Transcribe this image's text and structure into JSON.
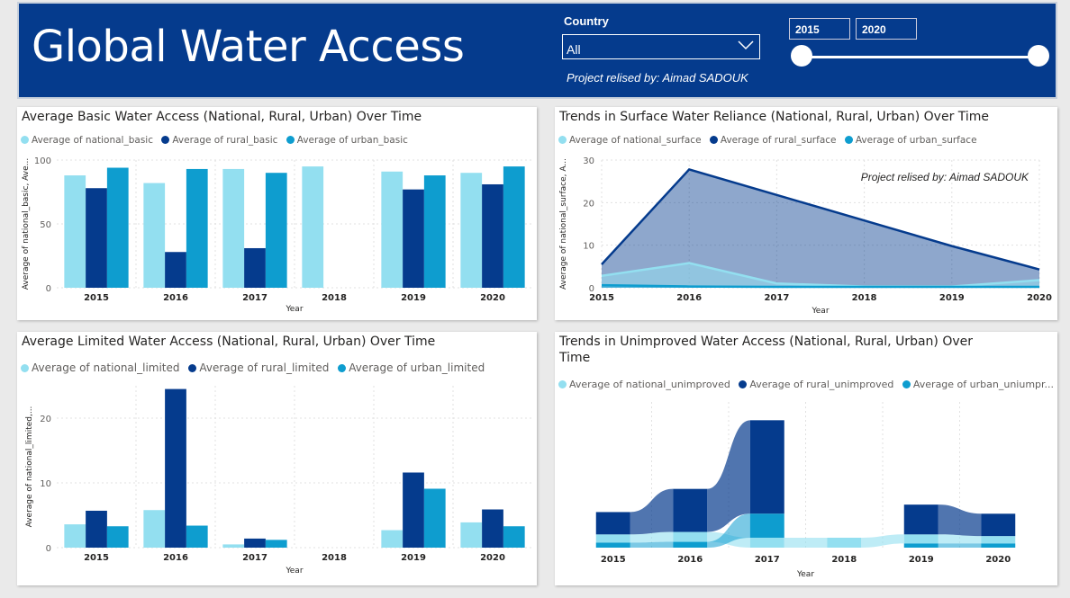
{
  "header": {
    "title": "Global Water Access",
    "country_label": "Country",
    "country_value": "All",
    "credit": "Project relised by: Aimad SADOUK",
    "year_from": "2015",
    "year_to": "2020",
    "background": "#053b8d"
  },
  "colors": {
    "national": "#93dff0",
    "rural": "#053b8d",
    "urban": "#0e9dcf"
  },
  "chart_data": [
    {
      "type": "bar",
      "title": "Average Basic Water Access (National, Rural, Urban) Over Time",
      "xlabel": "Year",
      "ylabel": "Average of national_basic, Ave...",
      "categories": [
        "2015",
        "2016",
        "2017",
        "2018",
        "2019",
        "2020"
      ],
      "ylim": [
        0,
        100
      ],
      "yticks": [
        "0",
        "50",
        "100"
      ],
      "series": [
        {
          "name": "Average of national_basic",
          "values": [
            88,
            82,
            93,
            95,
            91,
            90
          ]
        },
        {
          "name": "Average of rural_basic",
          "values": [
            78,
            28,
            31,
            null,
            77,
            81
          ]
        },
        {
          "name": "Average of urban_basic",
          "values": [
            94,
            93,
            90,
            null,
            88,
            95
          ]
        }
      ]
    },
    {
      "type": "area",
      "title": "Trends in Surface Water Reliance (National, Rural, Urban) Over Time",
      "xlabel": "Year",
      "ylabel": "Average of national_surface, A...",
      "categories": [
        "2015",
        "2016",
        "2017",
        "2018",
        "2019",
        "2020"
      ],
      "ylim": [
        0,
        30
      ],
      "yticks": [
        "0",
        "10",
        "20",
        "30"
      ],
      "annotation": "Project relised by: Aimad SADOUK",
      "series": [
        {
          "name": "Average of national_surface",
          "values": [
            2.8,
            5.8,
            1.0,
            0.3,
            0.3,
            1.8
          ]
        },
        {
          "name": "Average of rural_surface",
          "values": [
            5.5,
            27.8,
            21.8,
            15.8,
            9.8,
            4.3
          ]
        },
        {
          "name": "Average of urban_surface",
          "values": [
            0.6,
            0.3,
            0.2,
            0.2,
            0.2,
            0.2
          ]
        }
      ]
    },
    {
      "type": "bar",
      "title": "Average Limited Water Access (National, Rural, Urban) Over Time",
      "xlabel": "Year",
      "ylabel": "Average of national_limited,...",
      "categories": [
        "2015",
        "2016",
        "2017",
        "2018",
        "2019",
        "2020"
      ],
      "ylim": [
        0,
        25
      ],
      "yticks": [
        "0",
        "10",
        "20"
      ],
      "series": [
        {
          "name": "Average of national_limited",
          "values": [
            3.6,
            5.8,
            0.5,
            null,
            2.7,
            3.9
          ]
        },
        {
          "name": "Average of rural_limited",
          "values": [
            5.7,
            24.5,
            1.4,
            null,
            11.6,
            5.9
          ]
        },
        {
          "name": "Average of urban_limited",
          "values": [
            3.3,
            3.4,
            1.2,
            null,
            9.1,
            3.3
          ]
        }
      ]
    },
    {
      "type": "bar",
      "title": "Trends in Unimproved Water Access (National, Rural, Urban) Over Time",
      "xlabel": "Year",
      "categories": [
        "2015",
        "2016",
        "2017",
        "2018",
        "2019",
        "2020"
      ],
      "series": [
        {
          "name": "Average of national_unimproved",
          "values": [
            1.0,
            1.2,
            1.2,
            1.2,
            1.1,
            0.9
          ]
        },
        {
          "name": "Average of rural_unimproved",
          "values": [
            2.7,
            5.2,
            11.3,
            null,
            3.6,
            2.7
          ]
        },
        {
          "name": "Average of urban_unimproved",
          "values": [
            0.6,
            0.7,
            2.9,
            null,
            0.5,
            0.5
          ]
        }
      ]
    }
  ],
  "legends": [
    [
      "Average of national_basic",
      "Average of rural_basic",
      "Average of urban_basic"
    ],
    [
      "Average of national_surface",
      "Average of rural_surface",
      "Average of urban_surface"
    ],
    [
      "Average of national_limited",
      "Average of rural_limited",
      "Average of urban_limited"
    ],
    [
      "Average of national_unimproved",
      "Average of rural_unimproved",
      "Average of urban_uniumpr..."
    ]
  ]
}
